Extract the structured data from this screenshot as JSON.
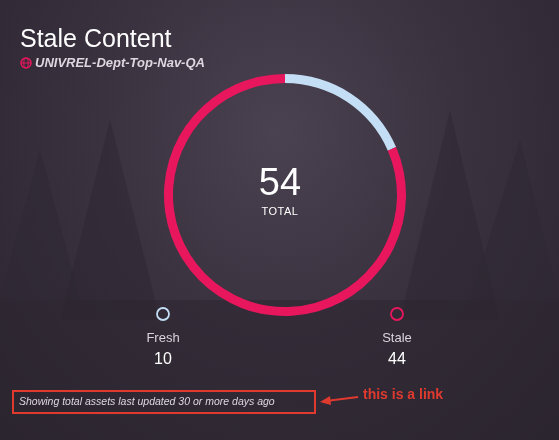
{
  "chart_data": {
    "type": "donut",
    "title": "Stale Content",
    "subtitle": "UNIVREL-Dept-Top-Nav-QA",
    "categories": [
      "Fresh",
      "Stale"
    ],
    "values": [
      10,
      44
    ],
    "colors": [
      "#c3def5",
      "#e8175d"
    ],
    "total": 54,
    "total_label": "TOTAL",
    "legend": "bottom",
    "data_labels": false,
    "footer": "Showing total assets last updated 30 or more days ago",
    "annotation": "this is a link"
  }
}
